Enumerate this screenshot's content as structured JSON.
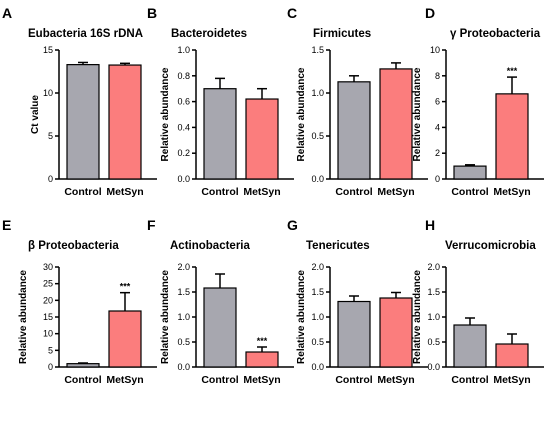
{
  "colors": {
    "control": "#a7a7af",
    "metsyn": "#fb7d7d"
  },
  "chart_data": [
    {
      "letter": "A",
      "type": "bar",
      "title": "Eubacteria 16S rDNA",
      "ylabel": "Ct value",
      "ylim": [
        0,
        15
      ],
      "yticks": [
        0,
        5,
        10,
        15
      ],
      "tick_labels": [
        "0",
        "5",
        "10",
        "15"
      ],
      "categories": [
        "Control",
        "MetSyn"
      ],
      "values": [
        13.3,
        13.25
      ],
      "errors": [
        0.25,
        0.2
      ],
      "significance": [
        "",
        ""
      ]
    },
    {
      "letter": "B",
      "type": "bar",
      "title": "Bacteroidetes",
      "ylabel": "Relative abundance",
      "ylim": [
        0,
        1.0
      ],
      "yticks": [
        0,
        0.2,
        0.4,
        0.6,
        0.8,
        1.0
      ],
      "tick_labels": [
        "0.0",
        "0.2",
        "0.4",
        "0.6",
        "0.8",
        "1.0"
      ],
      "categories": [
        "Control",
        "MetSyn"
      ],
      "values": [
        0.7,
        0.62
      ],
      "errors": [
        0.08,
        0.08
      ],
      "significance": [
        "",
        ""
      ]
    },
    {
      "letter": "C",
      "type": "bar",
      "title": "Firmicutes",
      "ylabel": "Relative abundance",
      "ylim": [
        0,
        1.5
      ],
      "yticks": [
        0,
        0.5,
        1.0,
        1.5
      ],
      "tick_labels": [
        "0.0",
        "0.5",
        "1.0",
        "1.5"
      ],
      "categories": [
        "Control",
        "MetSyn"
      ],
      "values": [
        1.13,
        1.28
      ],
      "errors": [
        0.07,
        0.07
      ],
      "significance": [
        "",
        ""
      ]
    },
    {
      "letter": "D",
      "type": "bar",
      "title": "γ Proteobacteria",
      "ylabel": "Relative abundance",
      "ylim": [
        0,
        10
      ],
      "yticks": [
        0,
        2,
        4,
        6,
        8,
        10
      ],
      "tick_labels": [
        "0",
        "2",
        "4",
        "6",
        "8",
        "10"
      ],
      "categories": [
        "Control",
        "MetSyn"
      ],
      "values": [
        1.0,
        6.6
      ],
      "errors": [
        0.1,
        1.3
      ],
      "significance": [
        "",
        "***"
      ]
    },
    {
      "letter": "E",
      "type": "bar",
      "title": "β Proteobacteria",
      "ylabel": "Relative abundance",
      "ylim": [
        0,
        30
      ],
      "yticks": [
        0,
        5,
        10,
        15,
        20,
        25,
        30
      ],
      "tick_labels": [
        "0",
        "5",
        "10",
        "15",
        "20",
        "25",
        "30"
      ],
      "categories": [
        "Control",
        "MetSyn"
      ],
      "values": [
        1.0,
        16.8
      ],
      "errors": [
        0.2,
        5.5
      ],
      "significance": [
        "",
        "***"
      ]
    },
    {
      "letter": "F",
      "type": "bar",
      "title": "Actinobacteria",
      "ylabel": "Relative abundance",
      "ylim": [
        0,
        2.0
      ],
      "yticks": [
        0,
        0.5,
        1.0,
        1.5,
        2.0
      ],
      "tick_labels": [
        "0.0",
        "0.5",
        "1.0",
        "1.5",
        "2.0"
      ],
      "categories": [
        "Control",
        "MetSyn"
      ],
      "values": [
        1.58,
        0.3
      ],
      "errors": [
        0.28,
        0.1
      ],
      "significance": [
        "",
        "***"
      ]
    },
    {
      "letter": "G",
      "type": "bar",
      "title": "Tenericutes",
      "ylabel": "Relative abundance",
      "ylim": [
        0,
        2.0
      ],
      "yticks": [
        0,
        0.5,
        1.0,
        1.5,
        2.0
      ],
      "tick_labels": [
        "0.0",
        "0.5",
        "1.0",
        "1.5",
        "2.0"
      ],
      "categories": [
        "Control",
        "MetSyn"
      ],
      "values": [
        1.31,
        1.38
      ],
      "errors": [
        0.11,
        0.11
      ],
      "significance": [
        "",
        ""
      ]
    },
    {
      "letter": "H",
      "type": "bar",
      "title": "Verrucomicrobia",
      "ylabel": "Relative abundance",
      "ylim": [
        0,
        2.0
      ],
      "yticks": [
        0,
        0.5,
        1.0,
        1.5,
        2.0
      ],
      "tick_labels": [
        "0.0",
        "0.5",
        "1.0",
        "1.5",
        "2.0"
      ],
      "categories": [
        "Control",
        "MetSyn"
      ],
      "values": [
        0.84,
        0.46
      ],
      "errors": [
        0.14,
        0.2
      ],
      "significance": [
        "",
        ""
      ]
    }
  ]
}
